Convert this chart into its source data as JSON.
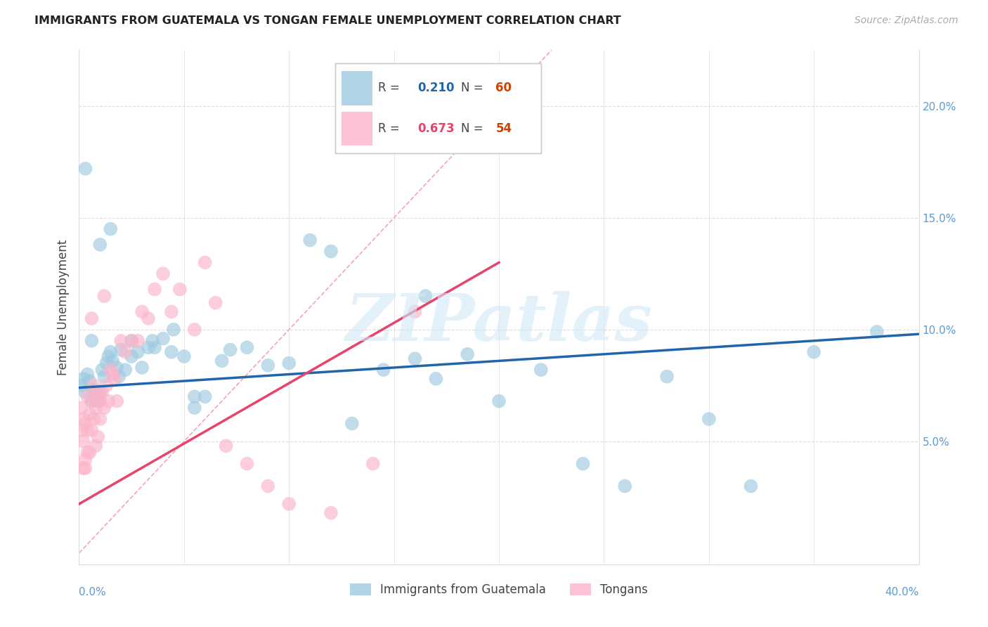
{
  "title": "IMMIGRANTS FROM GUATEMALA VS TONGAN FEMALE UNEMPLOYMENT CORRELATION CHART",
  "source": "Source: ZipAtlas.com",
  "ylabel": "Female Unemployment",
  "right_yticks": [
    0.0,
    0.05,
    0.1,
    0.15,
    0.2
  ],
  "right_yticklabels": [
    "",
    "5.0%",
    "10.0%",
    "15.0%",
    "20.0%"
  ],
  "xlim": [
    0.0,
    0.4
  ],
  "ylim": [
    -0.005,
    0.225
  ],
  "legend_blue_r": "0.210",
  "legend_blue_n": "60",
  "legend_pink_r": "0.673",
  "legend_pink_n": "54",
  "legend_label_blue": "Immigrants from Guatemala",
  "legend_label_pink": "Tongans",
  "blue_scatter_color": "#9ecae1",
  "pink_scatter_color": "#fbb4c9",
  "blue_line_color": "#2166ac",
  "pink_line_color": "#e8436a",
  "ref_line_color": "#f4a4b8",
  "axis_color": "#dddddd",
  "text_color": "#444444",
  "tick_color": "#5b9bd5",
  "title_color": "#222222",
  "source_color": "#aaaaaa",
  "watermark": "ZIPatlas",
  "watermark_color": "#d0e8f8",
  "blue_line_x0": 0.0,
  "blue_line_y0": 0.074,
  "blue_line_x1": 0.4,
  "blue_line_y1": 0.098,
  "pink_line_x0": 0.0,
  "pink_line_y0": 0.022,
  "pink_line_x1": 0.2,
  "pink_line_y1": 0.13,
  "ref_line_x0": 0.0,
  "ref_line_y0": 0.0,
  "ref_line_x1": 0.225,
  "ref_line_y1": 0.225,
  "scatter_blue_x": [
    0.001,
    0.002,
    0.003,
    0.004,
    0.005,
    0.006,
    0.007,
    0.008,
    0.009,
    0.01,
    0.011,
    0.012,
    0.013,
    0.014,
    0.015,
    0.016,
    0.018,
    0.019,
    0.02,
    0.022,
    0.025,
    0.028,
    0.03,
    0.033,
    0.036,
    0.04,
    0.044,
    0.05,
    0.055,
    0.06,
    0.068,
    0.072,
    0.08,
    0.09,
    0.1,
    0.11,
    0.12,
    0.13,
    0.145,
    0.16,
    0.17,
    0.185,
    0.2,
    0.22,
    0.24,
    0.26,
    0.28,
    0.3,
    0.32,
    0.35,
    0.003,
    0.006,
    0.01,
    0.015,
    0.025,
    0.035,
    0.045,
    0.055,
    0.165,
    0.38
  ],
  "scatter_blue_y": [
    0.075,
    0.078,
    0.072,
    0.08,
    0.077,
    0.068,
    0.073,
    0.07,
    0.068,
    0.072,
    0.082,
    0.079,
    0.085,
    0.088,
    0.09,
    0.086,
    0.083,
    0.079,
    0.091,
    0.082,
    0.088,
    0.09,
    0.083,
    0.092,
    0.092,
    0.096,
    0.09,
    0.088,
    0.065,
    0.07,
    0.086,
    0.091,
    0.092,
    0.084,
    0.085,
    0.14,
    0.135,
    0.058,
    0.082,
    0.087,
    0.078,
    0.089,
    0.068,
    0.082,
    0.04,
    0.03,
    0.079,
    0.06,
    0.03,
    0.09,
    0.172,
    0.095,
    0.138,
    0.145,
    0.095,
    0.095,
    0.1,
    0.07,
    0.115,
    0.099
  ],
  "scatter_pink_x": [
    0.001,
    0.001,
    0.002,
    0.002,
    0.003,
    0.003,
    0.004,
    0.004,
    0.005,
    0.005,
    0.006,
    0.006,
    0.007,
    0.007,
    0.008,
    0.008,
    0.009,
    0.009,
    0.01,
    0.01,
    0.011,
    0.012,
    0.013,
    0.014,
    0.015,
    0.016,
    0.017,
    0.018,
    0.02,
    0.022,
    0.025,
    0.028,
    0.03,
    0.033,
    0.036,
    0.04,
    0.044,
    0.048,
    0.055,
    0.06,
    0.065,
    0.07,
    0.08,
    0.09,
    0.1,
    0.12,
    0.14,
    0.16,
    0.002,
    0.003,
    0.004,
    0.006,
    0.008,
    0.012
  ],
  "scatter_pink_y": [
    0.065,
    0.055,
    0.06,
    0.05,
    0.058,
    0.042,
    0.07,
    0.055,
    0.062,
    0.045,
    0.068,
    0.055,
    0.075,
    0.06,
    0.072,
    0.048,
    0.07,
    0.052,
    0.068,
    0.06,
    0.072,
    0.065,
    0.075,
    0.068,
    0.082,
    0.08,
    0.078,
    0.068,
    0.095,
    0.09,
    0.095,
    0.095,
    0.108,
    0.105,
    0.118,
    0.125,
    0.108,
    0.118,
    0.1,
    0.13,
    0.112,
    0.048,
    0.04,
    0.03,
    0.022,
    0.018,
    0.04,
    0.108,
    0.038,
    0.038,
    0.045,
    0.105,
    0.065,
    0.115
  ]
}
